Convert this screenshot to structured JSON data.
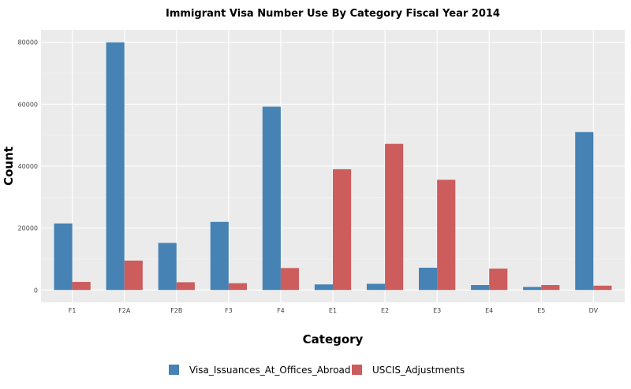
{
  "chart_data": {
    "type": "bar",
    "title": "Immigrant Visa Number Use By Category Fiscal Year 2014",
    "xlabel": "Category",
    "ylabel": "Count",
    "categories": [
      "F1",
      "F2A",
      "F2B",
      "F3",
      "F4",
      "E1",
      "E2",
      "E3",
      "E4",
      "E5",
      "DV"
    ],
    "series": [
      {
        "name": "Visa_Issuances_At_Offices_Abroad",
        "color": "#4682b4",
        "values": [
          21500,
          80000,
          15200,
          22000,
          59200,
          1800,
          2000,
          7200,
          1600,
          1000,
          51000
        ]
      },
      {
        "name": "USCIS_Adjustments",
        "color": "#cd5c5c",
        "values": [
          2600,
          9500,
          2500,
          2200,
          7100,
          39000,
          47200,
          35600,
          6900,
          1600,
          1400
        ]
      }
    ],
    "ylim": [
      -4000,
      84000
    ],
    "yticks": [
      "0",
      "20000",
      "40000",
      "60000",
      "80000"
    ],
    "grid": true,
    "legend": "bottom"
  }
}
